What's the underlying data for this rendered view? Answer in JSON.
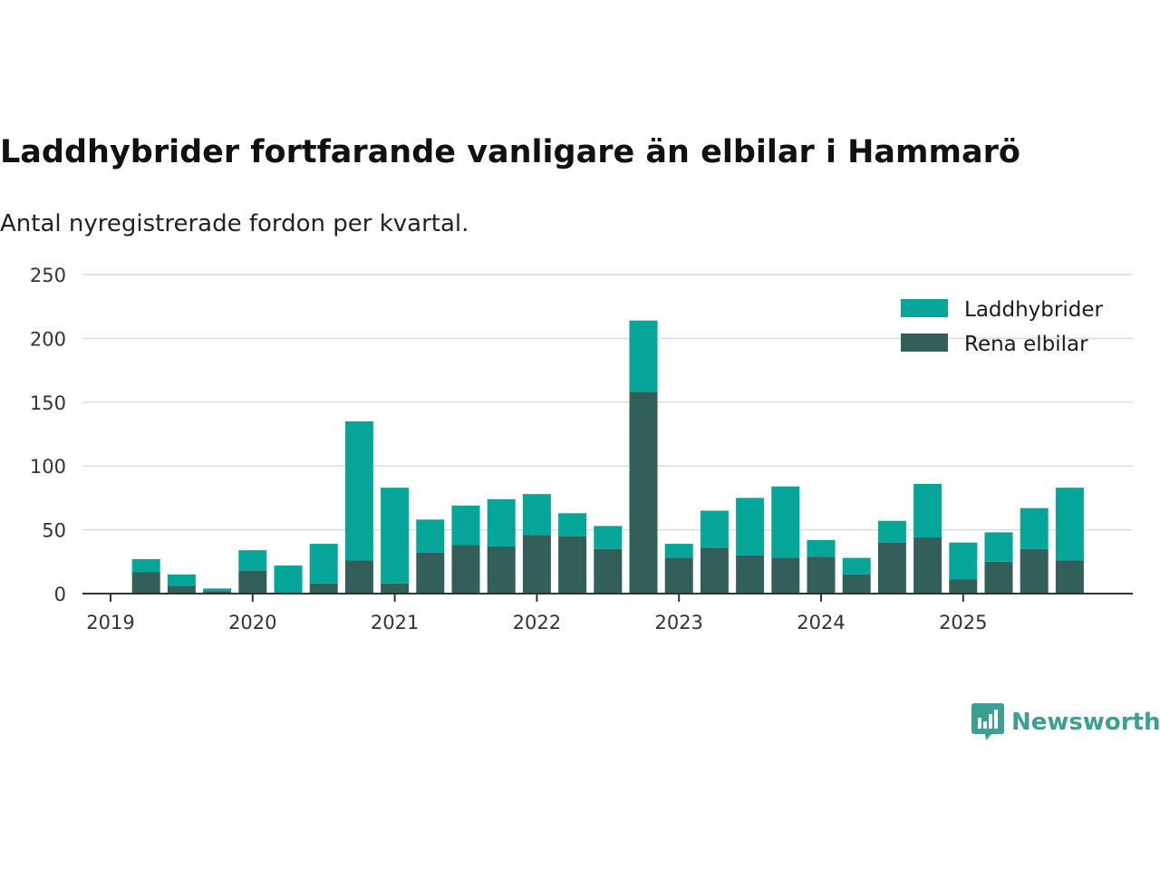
{
  "header": {
    "title": "Laddhybrider fortfarande vanligare än elbilar i Hammarö",
    "subtitle": "Antal nyregistrerade fordon per kvartal."
  },
  "brand": {
    "name": "Newsworthy",
    "color": "#3c9f91",
    "icon": "newsworthy-logo-icon"
  },
  "chart_data": {
    "type": "bar",
    "stacked": true,
    "title": "Laddhybrider fortfarande vanligare än elbilar i Hammarö",
    "subtitle": "Antal nyregistrerade fordon per kvartal.",
    "xlabel": "",
    "ylabel": "",
    "ylim": [
      0,
      250
    ],
    "yticks": [
      0,
      50,
      100,
      150,
      200,
      250
    ],
    "xtick_labels": [
      "2019",
      "2020",
      "2021",
      "2022",
      "2023",
      "2024",
      "2025"
    ],
    "grid": true,
    "legend_position": "top-right",
    "categories": [
      "2019 Q1",
      "2019 Q2",
      "2019 Q3",
      "2019 Q4",
      "2020 Q1",
      "2020 Q2",
      "2020 Q3",
      "2020 Q4",
      "2021 Q1",
      "2021 Q2",
      "2021 Q3",
      "2021 Q4",
      "2022 Q1",
      "2022 Q2",
      "2022 Q3",
      "2022 Q4",
      "2023 Q1",
      "2023 Q2",
      "2023 Q3",
      "2023 Q4",
      "2024 Q1",
      "2024 Q2",
      "2024 Q3",
      "2024 Q4",
      "2025 Q1",
      "2025 Q2",
      "2025 Q3",
      "2025 Q4"
    ],
    "series": [
      {
        "name": "Rena elbilar",
        "color": "#335f5b",
        "values": [
          0,
          17,
          6,
          2,
          18,
          1,
          8,
          26,
          8,
          32,
          38,
          37,
          46,
          45,
          35,
          158,
          28,
          36,
          30,
          28,
          29,
          15,
          40,
          44,
          11,
          25,
          35,
          26
        ]
      },
      {
        "name": "Laddhybrider",
        "color": "#06a59a",
        "values": [
          0,
          10,
          9,
          2,
          16,
          21,
          31,
          109,
          75,
          26,
          31,
          37,
          32,
          18,
          18,
          56,
          11,
          29,
          45,
          56,
          13,
          13,
          17,
          42,
          29,
          23,
          32,
          57
        ]
      }
    ],
    "legend": [
      "Laddhybrider",
      "Rena elbilar"
    ]
  }
}
